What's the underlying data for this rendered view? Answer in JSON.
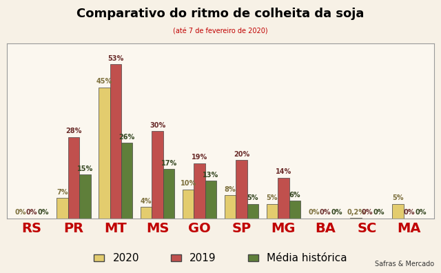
{
  "chart_data": {
    "type": "bar",
    "title": "Comparativo do ritmo de colheita da soja",
    "subtitle": "(até 7 de fevereiro de 2020)",
    "annotations": [
      "Safras & Mercado"
    ],
    "categories": [
      "RS",
      "PR",
      "MT",
      "MS",
      "GO",
      "SP",
      "MG",
      "BA",
      "SC",
      "MA"
    ],
    "series": [
      {
        "name": "2020",
        "color": "#e3cc6e",
        "values": [
          0,
          7,
          45,
          4,
          10,
          8,
          5,
          0,
          0.2,
          5
        ],
        "value_labels": [
          "0%",
          "7%",
          "45%",
          "4%",
          "10%",
          "8%",
          "5%",
          "0%",
          "0,2%",
          "5%"
        ]
      },
      {
        "name": "2019",
        "color": "#c0504d",
        "values": [
          0,
          28,
          53,
          30,
          19,
          20,
          14,
          0,
          0,
          0
        ],
        "value_labels": [
          "0%",
          "28%",
          "53%",
          "30%",
          "19%",
          "20%",
          "14%",
          "0%",
          "0%",
          "0%"
        ]
      },
      {
        "name": "Média histórica",
        "color": "#5f7f3a",
        "values": [
          0,
          15,
          26,
          17,
          13,
          5,
          6,
          0,
          0,
          0
        ],
        "value_labels": [
          "0%",
          "15%",
          "26%",
          "17%",
          "13%",
          "5%",
          "6%",
          "0%",
          "0%",
          "0%"
        ]
      }
    ],
    "ylim": [
      0,
      60
    ],
    "tick_labels": "x",
    "data_labels": true,
    "legend": "lower center",
    "grid": false
  }
}
